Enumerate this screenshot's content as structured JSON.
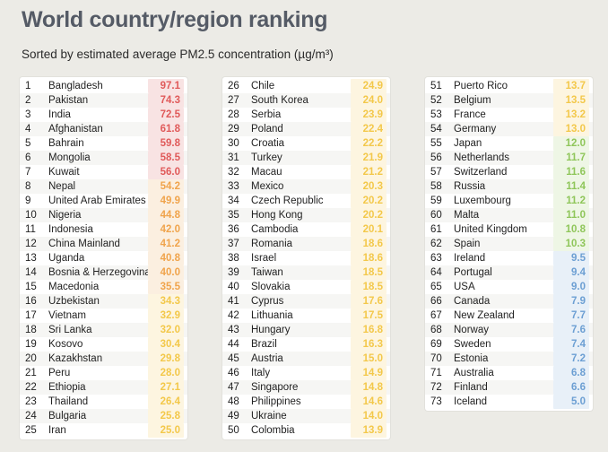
{
  "header": {
    "title": "World country/region ranking",
    "subtitle": "Sorted by estimated average PM2.5 concentration (µg/m³)"
  },
  "levels": {
    "red": "#e05a5a",
    "orange": "#f0a44c",
    "yellow": "#f3c84a",
    "green": "#8fc65a",
    "blue": "#6c9fd3"
  },
  "columns": [
    [
      {
        "rank": "1",
        "name": "Bangladesh",
        "value": "97.1",
        "level": "red"
      },
      {
        "rank": "2",
        "name": "Pakistan",
        "value": "74.3",
        "level": "red"
      },
      {
        "rank": "3",
        "name": "India",
        "value": "72.5",
        "level": "red"
      },
      {
        "rank": "4",
        "name": "Afghanistan",
        "value": "61.8",
        "level": "red"
      },
      {
        "rank": "5",
        "name": "Bahrain",
        "value": "59.8",
        "level": "red"
      },
      {
        "rank": "6",
        "name": "Mongolia",
        "value": "58.5",
        "level": "red"
      },
      {
        "rank": "7",
        "name": "Kuwait",
        "value": "56.0",
        "level": "red"
      },
      {
        "rank": "8",
        "name": "Nepal",
        "value": "54.2",
        "level": "orange"
      },
      {
        "rank": "9",
        "name": "United Arab Emirates",
        "value": "49.9",
        "level": "orange"
      },
      {
        "rank": "10",
        "name": "Nigeria",
        "value": "44.8",
        "level": "orange"
      },
      {
        "rank": "11",
        "name": "Indonesia",
        "value": "42.0",
        "level": "orange"
      },
      {
        "rank": "12",
        "name": "China Mainland",
        "value": "41.2",
        "level": "orange"
      },
      {
        "rank": "13",
        "name": "Uganda",
        "value": "40.8",
        "level": "orange"
      },
      {
        "rank": "14",
        "name": "Bosnia & Herzegovina",
        "value": "40.0",
        "level": "orange"
      },
      {
        "rank": "15",
        "name": "Macedonia",
        "value": "35.5",
        "level": "orange"
      },
      {
        "rank": "16",
        "name": "Uzbekistan",
        "value": "34.3",
        "level": "yellow"
      },
      {
        "rank": "17",
        "name": "Vietnam",
        "value": "32.9",
        "level": "yellow"
      },
      {
        "rank": "18",
        "name": "Sri Lanka",
        "value": "32.0",
        "level": "yellow"
      },
      {
        "rank": "19",
        "name": "Kosovo",
        "value": "30.4",
        "level": "yellow"
      },
      {
        "rank": "20",
        "name": "Kazakhstan",
        "value": "29.8",
        "level": "yellow"
      },
      {
        "rank": "21",
        "name": "Peru",
        "value": "28.0",
        "level": "yellow"
      },
      {
        "rank": "22",
        "name": "Ethiopia",
        "value": "27.1",
        "level": "yellow"
      },
      {
        "rank": "23",
        "name": "Thailand",
        "value": "26.4",
        "level": "yellow"
      },
      {
        "rank": "24",
        "name": "Bulgaria",
        "value": "25.8",
        "level": "yellow"
      },
      {
        "rank": "25",
        "name": "Iran",
        "value": "25.0",
        "level": "yellow"
      }
    ],
    [
      {
        "rank": "26",
        "name": "Chile",
        "value": "24.9",
        "level": "yellow"
      },
      {
        "rank": "27",
        "name": "South Korea",
        "value": "24.0",
        "level": "yellow"
      },
      {
        "rank": "28",
        "name": "Serbia",
        "value": "23.9",
        "level": "yellow"
      },
      {
        "rank": "29",
        "name": "Poland",
        "value": "22.4",
        "level": "yellow"
      },
      {
        "rank": "30",
        "name": "Croatia",
        "value": "22.2",
        "level": "yellow"
      },
      {
        "rank": "31",
        "name": "Turkey",
        "value": "21.9",
        "level": "yellow"
      },
      {
        "rank": "32",
        "name": "Macau",
        "value": "21.2",
        "level": "yellow"
      },
      {
        "rank": "33",
        "name": "Mexico",
        "value": "20.3",
        "level": "yellow"
      },
      {
        "rank": "34",
        "name": "Czech Republic",
        "value": "20.2",
        "level": "yellow"
      },
      {
        "rank": "35",
        "name": "Hong Kong",
        "value": "20.2",
        "level": "yellow"
      },
      {
        "rank": "36",
        "name": "Cambodia",
        "value": "20.1",
        "level": "yellow"
      },
      {
        "rank": "37",
        "name": "Romania",
        "value": "18.6",
        "level": "yellow"
      },
      {
        "rank": "38",
        "name": "Israel",
        "value": "18.6",
        "level": "yellow"
      },
      {
        "rank": "39",
        "name": "Taiwan",
        "value": "18.5",
        "level": "yellow"
      },
      {
        "rank": "40",
        "name": "Slovakia",
        "value": "18.5",
        "level": "yellow"
      },
      {
        "rank": "41",
        "name": "Cyprus",
        "value": "17.6",
        "level": "yellow"
      },
      {
        "rank": "42",
        "name": "Lithuania",
        "value": "17.5",
        "level": "yellow"
      },
      {
        "rank": "43",
        "name": "Hungary",
        "value": "16.8",
        "level": "yellow"
      },
      {
        "rank": "44",
        "name": "Brazil",
        "value": "16.3",
        "level": "yellow"
      },
      {
        "rank": "45",
        "name": "Austria",
        "value": "15.0",
        "level": "yellow"
      },
      {
        "rank": "46",
        "name": "Italy",
        "value": "14.9",
        "level": "yellow"
      },
      {
        "rank": "47",
        "name": "Singapore",
        "value": "14.8",
        "level": "yellow"
      },
      {
        "rank": "48",
        "name": "Philippines",
        "value": "14.6",
        "level": "yellow"
      },
      {
        "rank": "49",
        "name": "Ukraine",
        "value": "14.0",
        "level": "yellow"
      },
      {
        "rank": "50",
        "name": "Colombia",
        "value": "13.9",
        "level": "yellow"
      }
    ],
    [
      {
        "rank": "51",
        "name": "Puerto Rico",
        "value": "13.7",
        "level": "yellow"
      },
      {
        "rank": "52",
        "name": "Belgium",
        "value": "13.5",
        "level": "yellow"
      },
      {
        "rank": "53",
        "name": "France",
        "value": "13.2",
        "level": "yellow"
      },
      {
        "rank": "54",
        "name": "Germany",
        "value": "13.0",
        "level": "yellow"
      },
      {
        "rank": "55",
        "name": "Japan",
        "value": "12.0",
        "level": "green"
      },
      {
        "rank": "56",
        "name": "Netherlands",
        "value": "11.7",
        "level": "green"
      },
      {
        "rank": "57",
        "name": "Switzerland",
        "value": "11.6",
        "level": "green"
      },
      {
        "rank": "58",
        "name": "Russia",
        "value": "11.4",
        "level": "green"
      },
      {
        "rank": "59",
        "name": "Luxembourg",
        "value": "11.2",
        "level": "green"
      },
      {
        "rank": "60",
        "name": "Malta",
        "value": "11.0",
        "level": "green"
      },
      {
        "rank": "61",
        "name": "United Kingdom",
        "value": "10.8",
        "level": "green"
      },
      {
        "rank": "62",
        "name": "Spain",
        "value": "10.3",
        "level": "green"
      },
      {
        "rank": "63",
        "name": "Ireland",
        "value": "9.5",
        "level": "blue"
      },
      {
        "rank": "64",
        "name": "Portugal",
        "value": "9.4",
        "level": "blue"
      },
      {
        "rank": "65",
        "name": "USA",
        "value": "9.0",
        "level": "blue"
      },
      {
        "rank": "66",
        "name": "Canada",
        "value": "7.9",
        "level": "blue"
      },
      {
        "rank": "67",
        "name": "New Zealand",
        "value": "7.7",
        "level": "blue"
      },
      {
        "rank": "68",
        "name": "Norway",
        "value": "7.6",
        "level": "blue"
      },
      {
        "rank": "69",
        "name": "Sweden",
        "value": "7.4",
        "level": "blue"
      },
      {
        "rank": "70",
        "name": "Estonia",
        "value": "7.2",
        "level": "blue"
      },
      {
        "rank": "71",
        "name": "Australia",
        "value": "6.8",
        "level": "blue"
      },
      {
        "rank": "72",
        "name": "Finland",
        "value": "6.6",
        "level": "blue"
      },
      {
        "rank": "73",
        "name": "Iceland",
        "value": "5.0",
        "level": "blue"
      }
    ]
  ]
}
